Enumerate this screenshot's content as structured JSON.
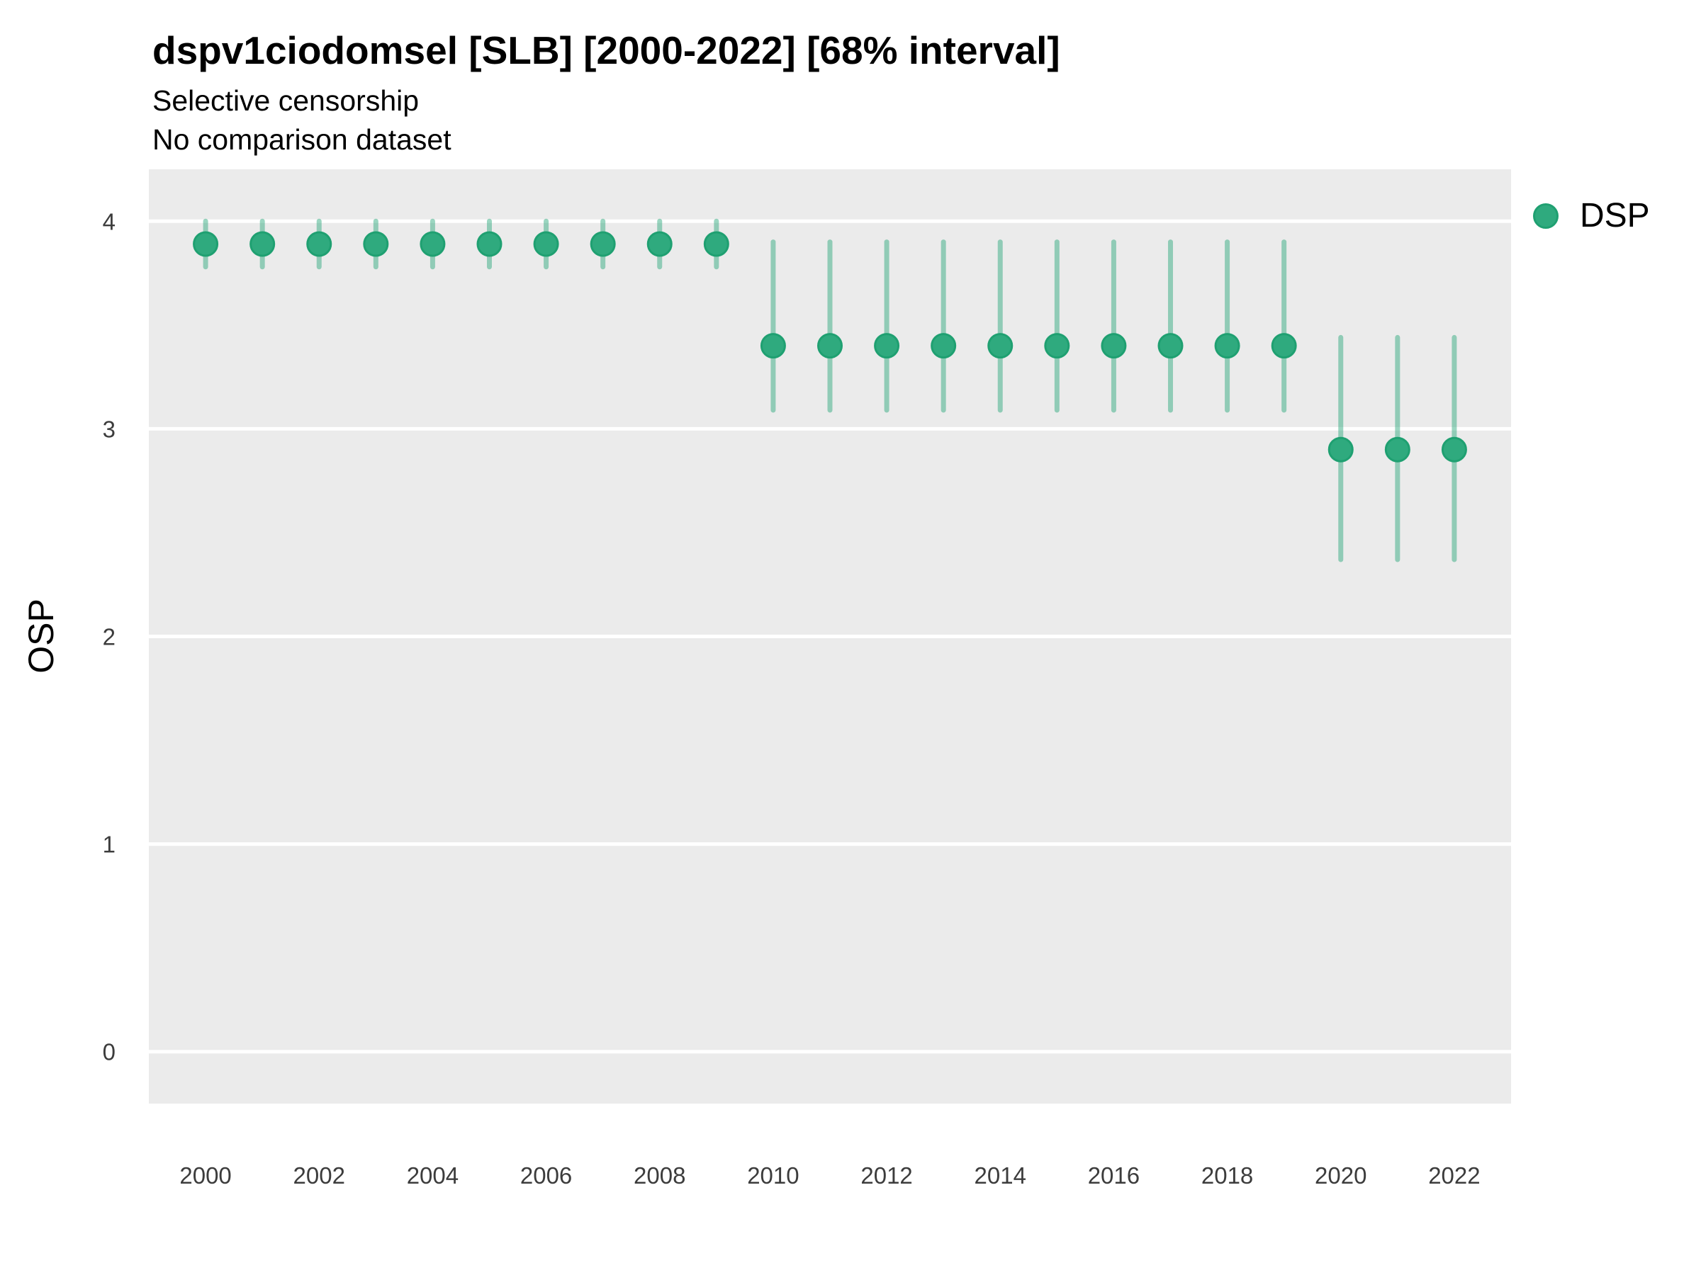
{
  "header": {
    "title": "dspv1ciodomsel [SLB] [2000-2022] [68% interval]",
    "subtitle1": "Selective censorship",
    "subtitle2": "No comparison dataset"
  },
  "legend": {
    "position": "right",
    "items": [
      {
        "label": "DSP",
        "marker": "circle",
        "color": "#2faa7e"
      }
    ]
  },
  "chart_data": {
    "type": "scatter",
    "subtype": "pointrange",
    "title": "dspv1ciodomsel [SLB] [2000-2022] [68% interval]",
    "subtitle": [
      "Selective censorship",
      "No comparison dataset"
    ],
    "xlabel": "",
    "ylabel": "OSP",
    "interval_level": "68%",
    "legend_position": "right",
    "grid": "horizontal-major-only",
    "panel_bg": "#ebebeb",
    "grid_color": "#ffffff",
    "axis_text_color": "#3c3c3c",
    "xlim": [
      1999,
      2023
    ],
    "ylim": [
      -0.25,
      4.25
    ],
    "x_ticks": [
      2000,
      2002,
      2004,
      2006,
      2008,
      2010,
      2012,
      2014,
      2016,
      2018,
      2020,
      2022
    ],
    "y_ticks": [
      0,
      1,
      2,
      3,
      4
    ],
    "series": [
      {
        "name": "DSP",
        "point_color": "#2faa7e",
        "point_stroke": "#1fa071",
        "range_color": "#2aa87c",
        "range_opacity": 0.47,
        "x": [
          2000,
          2001,
          2002,
          2003,
          2004,
          2005,
          2006,
          2007,
          2008,
          2009,
          2010,
          2011,
          2012,
          2013,
          2014,
          2015,
          2016,
          2017,
          2018,
          2019,
          2020,
          2021,
          2022
        ],
        "y": [
          3.89,
          3.89,
          3.89,
          3.89,
          3.89,
          3.89,
          3.89,
          3.89,
          3.89,
          3.89,
          3.4,
          3.4,
          3.4,
          3.4,
          3.4,
          3.4,
          3.4,
          3.4,
          3.4,
          3.4,
          2.9,
          2.9,
          2.9
        ],
        "y_lo": [
          3.78,
          3.78,
          3.78,
          3.78,
          3.78,
          3.78,
          3.78,
          3.78,
          3.78,
          3.78,
          3.09,
          3.09,
          3.09,
          3.09,
          3.09,
          3.09,
          3.09,
          3.09,
          3.09,
          3.09,
          2.37,
          2.37,
          2.37
        ],
        "y_hi": [
          4.0,
          4.0,
          4.0,
          4.0,
          4.0,
          4.0,
          4.0,
          4.0,
          4.0,
          4.0,
          3.9,
          3.9,
          3.9,
          3.9,
          3.9,
          3.9,
          3.9,
          3.9,
          3.9,
          3.9,
          3.44,
          3.44,
          3.44
        ]
      }
    ]
  }
}
